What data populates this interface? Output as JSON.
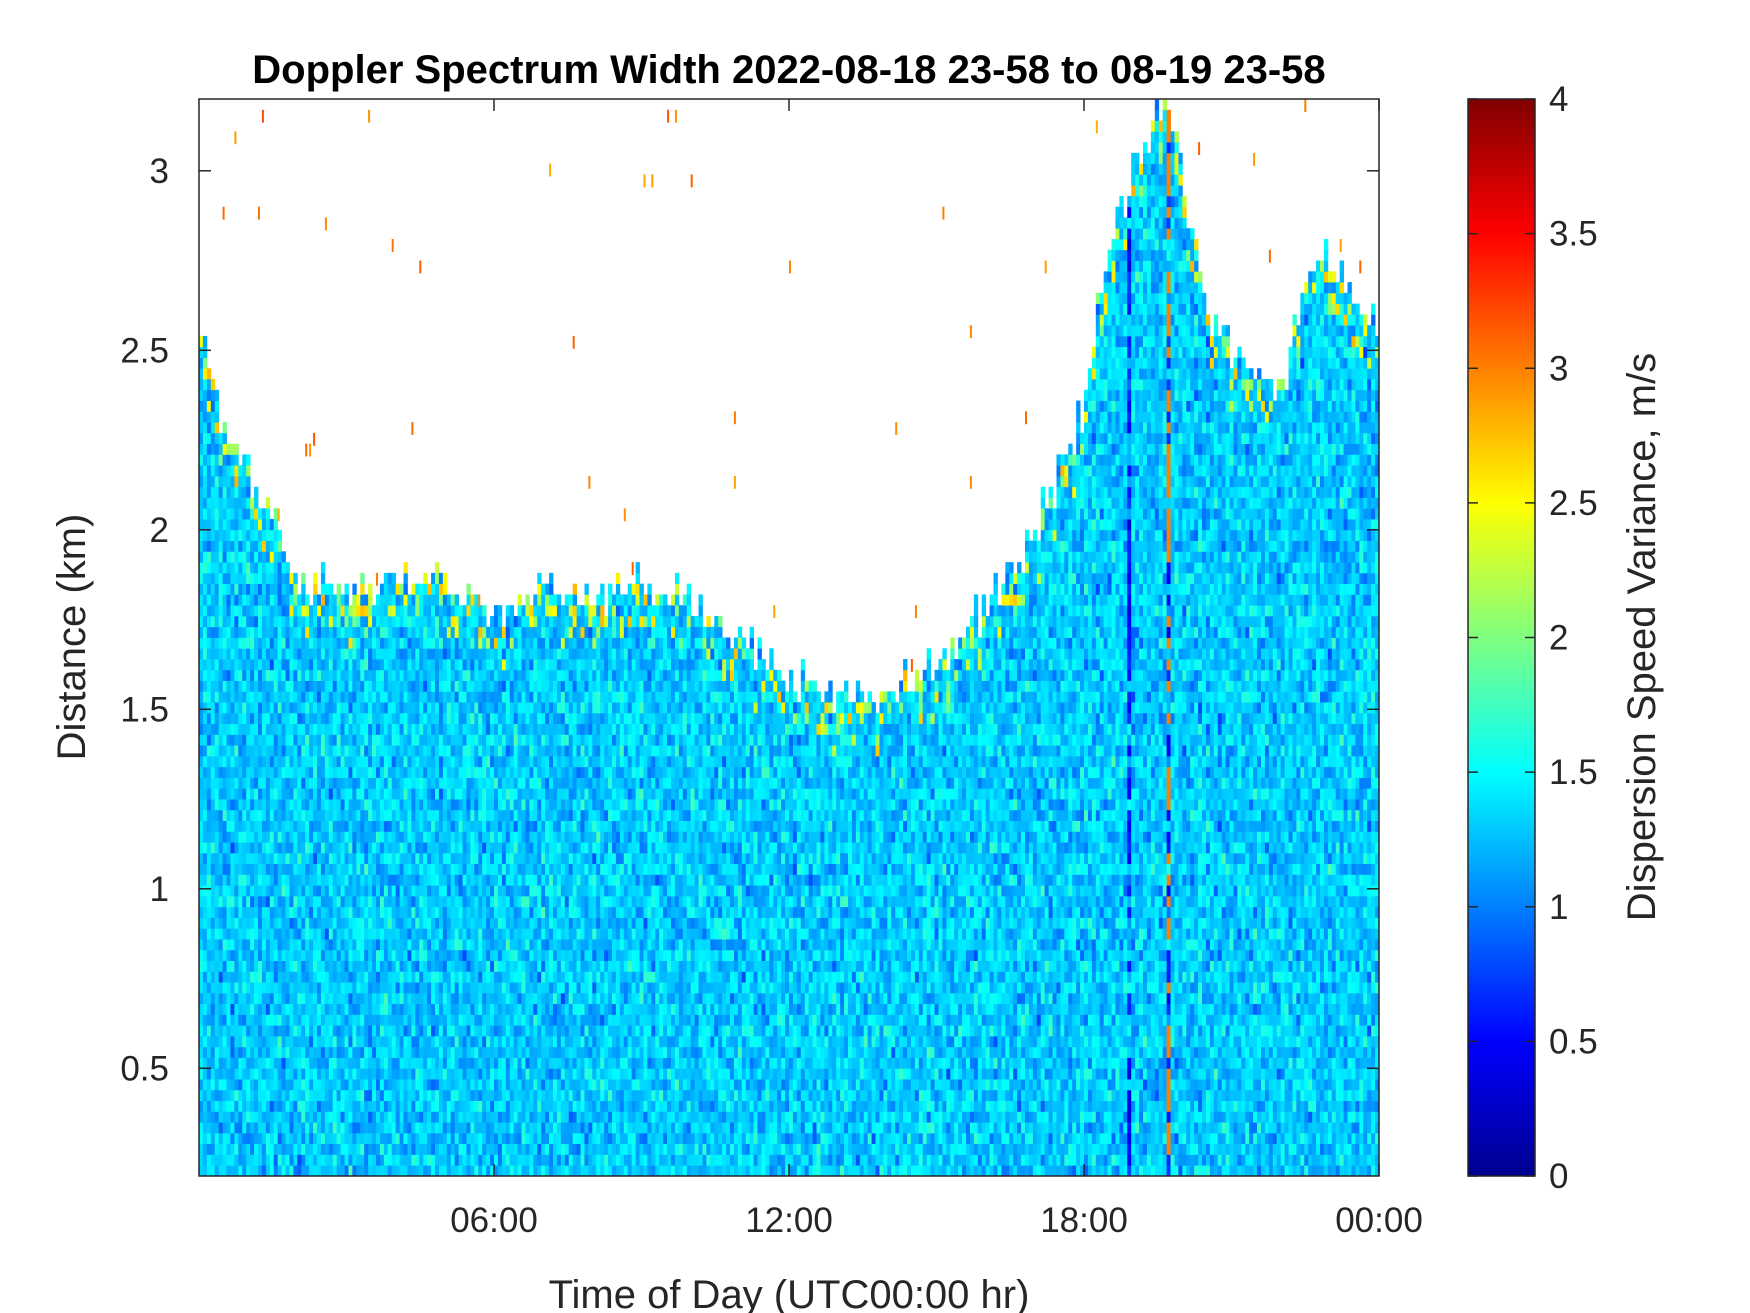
{
  "chart_data": {
    "type": "heatmap",
    "title": "Doppler Spectrum Width 2022-08-18 23-58 to 08-19 23-58",
    "xlabel": "Time of Day (UTC00:00 hr)",
    "ylabel": "Distance (km)",
    "colorbar_label": "Dispersion Speed Variance, m/s",
    "colormap": "jet",
    "x_range_hours": [
      0,
      24
    ],
    "x_ticks": [
      {
        "value": 6,
        "label": "06:00"
      },
      {
        "value": 12,
        "label": "12:00"
      },
      {
        "value": 18,
        "label": "18:00"
      },
      {
        "value": 24,
        "label": "00:00"
      }
    ],
    "ylim": [
      0.2,
      3.2
    ],
    "y_ticks": [
      {
        "value": 0.5,
        "label": "0.5"
      },
      {
        "value": 1,
        "label": "1"
      },
      {
        "value": 1.5,
        "label": "1.5"
      },
      {
        "value": 2,
        "label": "2"
      },
      {
        "value": 2.5,
        "label": "2.5"
      },
      {
        "value": 3,
        "label": "3"
      }
    ],
    "clim": [
      0,
      4
    ],
    "colorbar_ticks": [
      {
        "value": 0,
        "label": "0"
      },
      {
        "value": 0.5,
        "label": "0.5"
      },
      {
        "value": 1,
        "label": "1"
      },
      {
        "value": 1.5,
        "label": "1.5"
      },
      {
        "value": 2,
        "label": "2"
      },
      {
        "value": 2.5,
        "label": "2.5"
      },
      {
        "value": 3,
        "label": "3"
      },
      {
        "value": 3.5,
        "label": "3.5"
      },
      {
        "value": 4,
        "label": "4"
      }
    ],
    "data_top_profile_km": [
      {
        "hour": 0,
        "top": 2.6
      },
      {
        "hour": 0.5,
        "top": 2.3
      },
      {
        "hour": 1.5,
        "top": 2.05
      },
      {
        "hour": 2,
        "top": 1.85
      },
      {
        "hour": 3,
        "top": 1.83
      },
      {
        "hour": 4,
        "top": 1.88
      },
      {
        "hour": 5,
        "top": 1.85
      },
      {
        "hour": 6,
        "top": 1.78
      },
      {
        "hour": 7,
        "top": 1.83
      },
      {
        "hour": 8,
        "top": 1.78
      },
      {
        "hour": 9,
        "top": 1.85
      },
      {
        "hour": 10,
        "top": 1.8
      },
      {
        "hour": 11,
        "top": 1.7
      },
      {
        "hour": 12,
        "top": 1.58
      },
      {
        "hour": 13,
        "top": 1.55
      },
      {
        "hour": 14,
        "top": 1.55
      },
      {
        "hour": 15,
        "top": 1.6
      },
      {
        "hour": 16,
        "top": 1.78
      },
      {
        "hour": 17,
        "top": 2.0
      },
      {
        "hour": 17.5,
        "top": 2.15
      },
      {
        "hour": 18,
        "top": 2.35
      },
      {
        "hour": 18.5,
        "top": 2.8
      },
      {
        "hour": 19,
        "top": 3.0
      },
      {
        "hour": 19.7,
        "top": 3.2
      },
      {
        "hour": 20.5,
        "top": 2.6
      },
      {
        "hour": 21,
        "top": 2.5
      },
      {
        "hour": 22,
        "top": 2.4
      },
      {
        "hour": 22.5,
        "top": 2.7
      },
      {
        "hour": 23,
        "top": 2.75
      },
      {
        "hour": 24,
        "top": 2.55
      }
    ],
    "typical_value_mps": 1.3,
    "value_spread_mps": 0.35,
    "low_value_streaks_hours": [
      18.9,
      19.7
    ],
    "high_value_streak_hours": [
      19.75
    ],
    "high_value_streak_mps": 3.0
  }
}
